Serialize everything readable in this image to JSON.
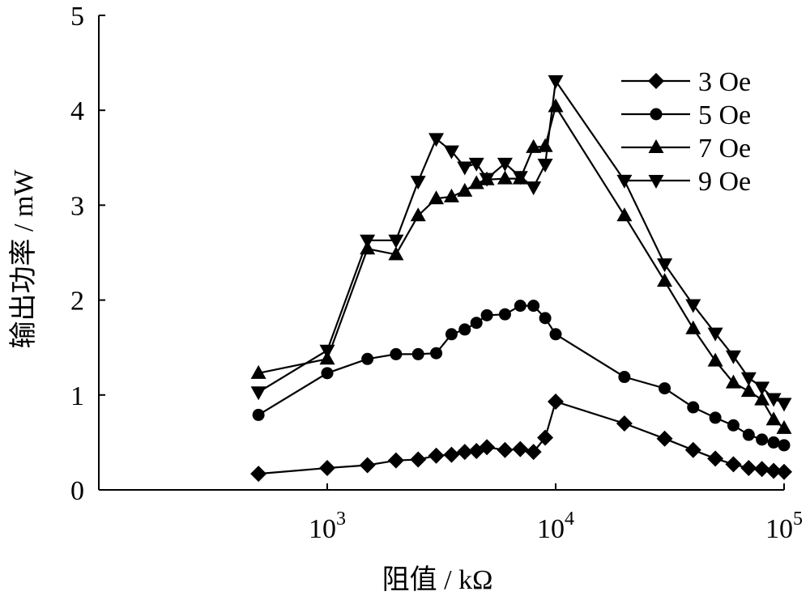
{
  "chart_data": {
    "type": "line",
    "title": "",
    "xlabel": "阻值 / kΩ",
    "ylabel": "输出功率 / mW",
    "xscale": "log",
    "xlim": [
      100,
      100000
    ],
    "ylim": [
      0,
      5
    ],
    "xticks": [
      {
        "value": 1000,
        "base": "10",
        "exp": "3"
      },
      {
        "value": 10000,
        "base": "10",
        "exp": "4"
      },
      {
        "value": 100000,
        "base": "10",
        "exp": "5"
      }
    ],
    "yticks": [
      "0",
      "1",
      "2",
      "3",
      "4",
      "5"
    ],
    "grid": false,
    "legend_position": "top-right",
    "series": [
      {
        "name": "3 Oe",
        "marker": "diamond",
        "color": "#000000",
        "x": [
          500,
          1000,
          1500,
          2000,
          2500,
          3000,
          3500,
          4000,
          4500,
          5000,
          6000,
          7000,
          8000,
          9000,
          10000,
          20000,
          30000,
          40000,
          50000,
          60000,
          70000,
          80000,
          90000,
          100000
        ],
        "y": [
          0.17,
          0.23,
          0.26,
          0.31,
          0.32,
          0.36,
          0.37,
          0.4,
          0.41,
          0.45,
          0.42,
          0.43,
          0.4,
          0.55,
          0.93,
          0.7,
          0.54,
          0.42,
          0.33,
          0.27,
          0.23,
          0.22,
          0.2,
          0.19
        ]
      },
      {
        "name": "5 Oe",
        "marker": "circle",
        "color": "#000000",
        "x": [
          500,
          1000,
          1500,
          2000,
          2500,
          3000,
          3500,
          4000,
          4500,
          5000,
          6000,
          7000,
          8000,
          9000,
          10000,
          20000,
          30000,
          40000,
          50000,
          60000,
          70000,
          80000,
          90000,
          100000
        ],
        "y": [
          0.79,
          1.23,
          1.38,
          1.43,
          1.43,
          1.44,
          1.64,
          1.69,
          1.76,
          1.84,
          1.85,
          1.94,
          1.94,
          1.81,
          1.64,
          1.19,
          1.07,
          0.87,
          0.76,
          0.68,
          0.58,
          0.53,
          0.5,
          0.47
        ]
      },
      {
        "name": "7 Oe",
        "marker": "triangle-up",
        "color": "#000000",
        "x": [
          500,
          1000,
          1500,
          2000,
          2500,
          3000,
          3500,
          4000,
          4500,
          5000,
          6000,
          7000,
          8000,
          9000,
          10000,
          20000,
          30000,
          40000,
          50000,
          60000,
          70000,
          80000,
          90000,
          100000
        ],
        "y": [
          1.23,
          1.38,
          2.54,
          2.48,
          2.89,
          3.07,
          3.09,
          3.15,
          3.23,
          3.27,
          3.28,
          3.28,
          3.61,
          3.62,
          4.04,
          2.89,
          2.2,
          1.7,
          1.36,
          1.13,
          1.04,
          0.95,
          0.74,
          0.65
        ]
      },
      {
        "name": "9 Oe",
        "marker": "triangle-down",
        "color": "#000000",
        "x": [
          500,
          1000,
          1500,
          2000,
          2500,
          3000,
          3500,
          4000,
          4500,
          5000,
          6000,
          7000,
          8000,
          9000,
          10000,
          20000,
          30000,
          40000,
          50000,
          60000,
          70000,
          80000,
          90000,
          100000
        ],
        "y": [
          1.03,
          1.47,
          2.63,
          2.63,
          3.25,
          3.7,
          3.57,
          3.4,
          3.44,
          3.28,
          3.44,
          3.3,
          3.19,
          3.43,
          4.31,
          3.26,
          2.38,
          1.95,
          1.65,
          1.41,
          1.18,
          1.08,
          0.96,
          0.91
        ]
      }
    ]
  }
}
